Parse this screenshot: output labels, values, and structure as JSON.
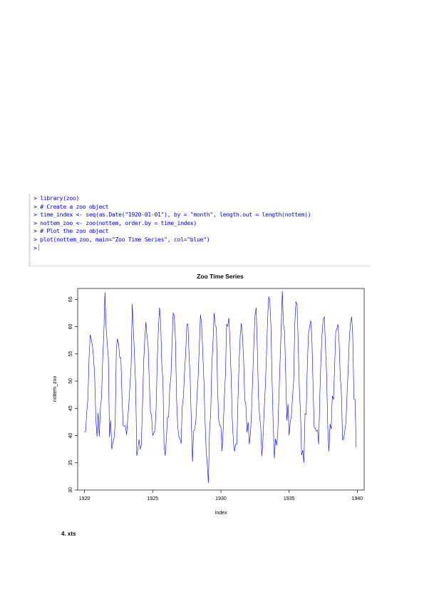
{
  "console": {
    "lines": [
      "> library(zoo)",
      "> # Create a zoo object",
      "> time_index <- seq(as.Date(\"1920-01-01\"), by = \"month\", length.out = length(nottem))",
      "> nottem_zoo <- zoo(nottem, order.by = time_index)",
      "> # Plot the zoo object",
      "> plot(nottem_zoo, main=\"Zoo Time Series\", col=\"blue\")",
      ">"
    ]
  },
  "chart_data": {
    "type": "line",
    "title": "Zoo Time Series",
    "xlabel": "Index",
    "ylabel": "nottem_zoo",
    "xlim": [
      1919.5,
      1940.5
    ],
    "ylim": [
      30,
      67
    ],
    "x_ticks": [
      "1920",
      "1925",
      "1930",
      "1935",
      "1940"
    ],
    "y_ticks": [
      "30",
      "35",
      "40",
      "45",
      "50",
      "55",
      "60",
      "65"
    ],
    "grid": false,
    "colors": {
      "series": "#0000ff"
    },
    "series": [
      {
        "x_start": "1920-01",
        "x_step": "month",
        "values": [
          40.6,
          40.8,
          44.4,
          46.7,
          54.1,
          58.5,
          57.7,
          56.4,
          54.3,
          50.5,
          42.9,
          39.8,
          44.2,
          39.8,
          45.1,
          47.0,
          54.1,
          58.7,
          66.3,
          59.9,
          57.0,
          54.2,
          39.7,
          42.8,
          37.5,
          38.7,
          39.5,
          42.1,
          55.7,
          57.8,
          56.8,
          54.3,
          54.3,
          47.1,
          41.8,
          41.7,
          41.8,
          40.1,
          42.9,
          45.8,
          49.2,
          52.7,
          64.2,
          59.6,
          54.4,
          49.2,
          36.3,
          37.6,
          39.3,
          37.5,
          38.3,
          45.5,
          53.2,
          57.7,
          60.8,
          58.2,
          56.4,
          49.8,
          44.4,
          43.6,
          40.0,
          40.5,
          40.8,
          45.1,
          53.8,
          59.4,
          63.5,
          61.0,
          53.0,
          50.0,
          38.1,
          36.3,
          39.2,
          43.4,
          43.4,
          48.9,
          50.6,
          56.8,
          62.5,
          62.0,
          57.5,
          46.7,
          41.6,
          39.8,
          39.4,
          38.5,
          45.3,
          47.1,
          51.7,
          55.0,
          60.4,
          60.5,
          54.7,
          50.3,
          42.3,
          35.2,
          40.8,
          41.1,
          42.8,
          47.3,
          50.9,
          56.4,
          62.2,
          60.5,
          55.4,
          50.2,
          43.0,
          37.3,
          34.8,
          31.3,
          41.0,
          43.9,
          53.1,
          56.9,
          62.5,
          60.3,
          59.8,
          49.2,
          42.9,
          41.9,
          41.6,
          37.1,
          41.2,
          46.9,
          51.2,
          60.4,
          60.1,
          61.6,
          57.0,
          50.9,
          43.0,
          38.8,
          37.1,
          38.4,
          38.4,
          46.5,
          53.5,
          58.4,
          60.6,
          58.2,
          53.8,
          46.6,
          45.5,
          40.6,
          42.4,
          38.4,
          40.3,
          44.6,
          50.9,
          57.0,
          62.1,
          63.5,
          56.3,
          47.3,
          43.6,
          41.8,
          36.2,
          39.3,
          44.5,
          48.7,
          54.2,
          60.8,
          65.5,
          64.9,
          60.1,
          50.2,
          42.1,
          35.8,
          39.4,
          38.2,
          40.4,
          46.9,
          53.4,
          59.6,
          66.5,
          60.4,
          59.2,
          51.2,
          42.8,
          45.8,
          40.0,
          42.6,
          43.5,
          47.1,
          50.0,
          60.5,
          64.6,
          64.0,
          56.8,
          48.6,
          44.2,
          36.4,
          37.3,
          35.0,
          44.0,
          43.9,
          52.7,
          58.6,
          60.0,
          61.1,
          58.1,
          49.6,
          41.6,
          41.3,
          40.8,
          41.0,
          38.4,
          47.4,
          54.1,
          58.6,
          61.4,
          61.8,
          56.3,
          50.9,
          41.4,
          37.1,
          42.1,
          41.2,
          47.3,
          46.6,
          52.4,
          59.0,
          59.6,
          60.4,
          57.0,
          50.7,
          47.8,
          39.2,
          39.4,
          40.9,
          42.4,
          47.8,
          52.4,
          58.0,
          60.7,
          61.8,
          58.2,
          46.7,
          46.6,
          37.8
        ]
      }
    ]
  },
  "footer": {
    "heading": "4. xts"
  }
}
